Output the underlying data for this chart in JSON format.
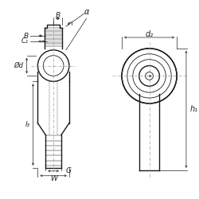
{
  "bg_color": "#ffffff",
  "line_color": "#1a1a1a",
  "dim_color": "#222222",
  "centerline_color": "#999999",
  "fig_width": 2.5,
  "fig_height": 2.5,
  "dpi": 100,
  "labels": {
    "alpha": "α",
    "B": "B",
    "C1": "C₁",
    "Od": "Ød",
    "l3": "l₃",
    "G": "G",
    "W": "W",
    "d2": "d₂",
    "h1": "h₁"
  }
}
